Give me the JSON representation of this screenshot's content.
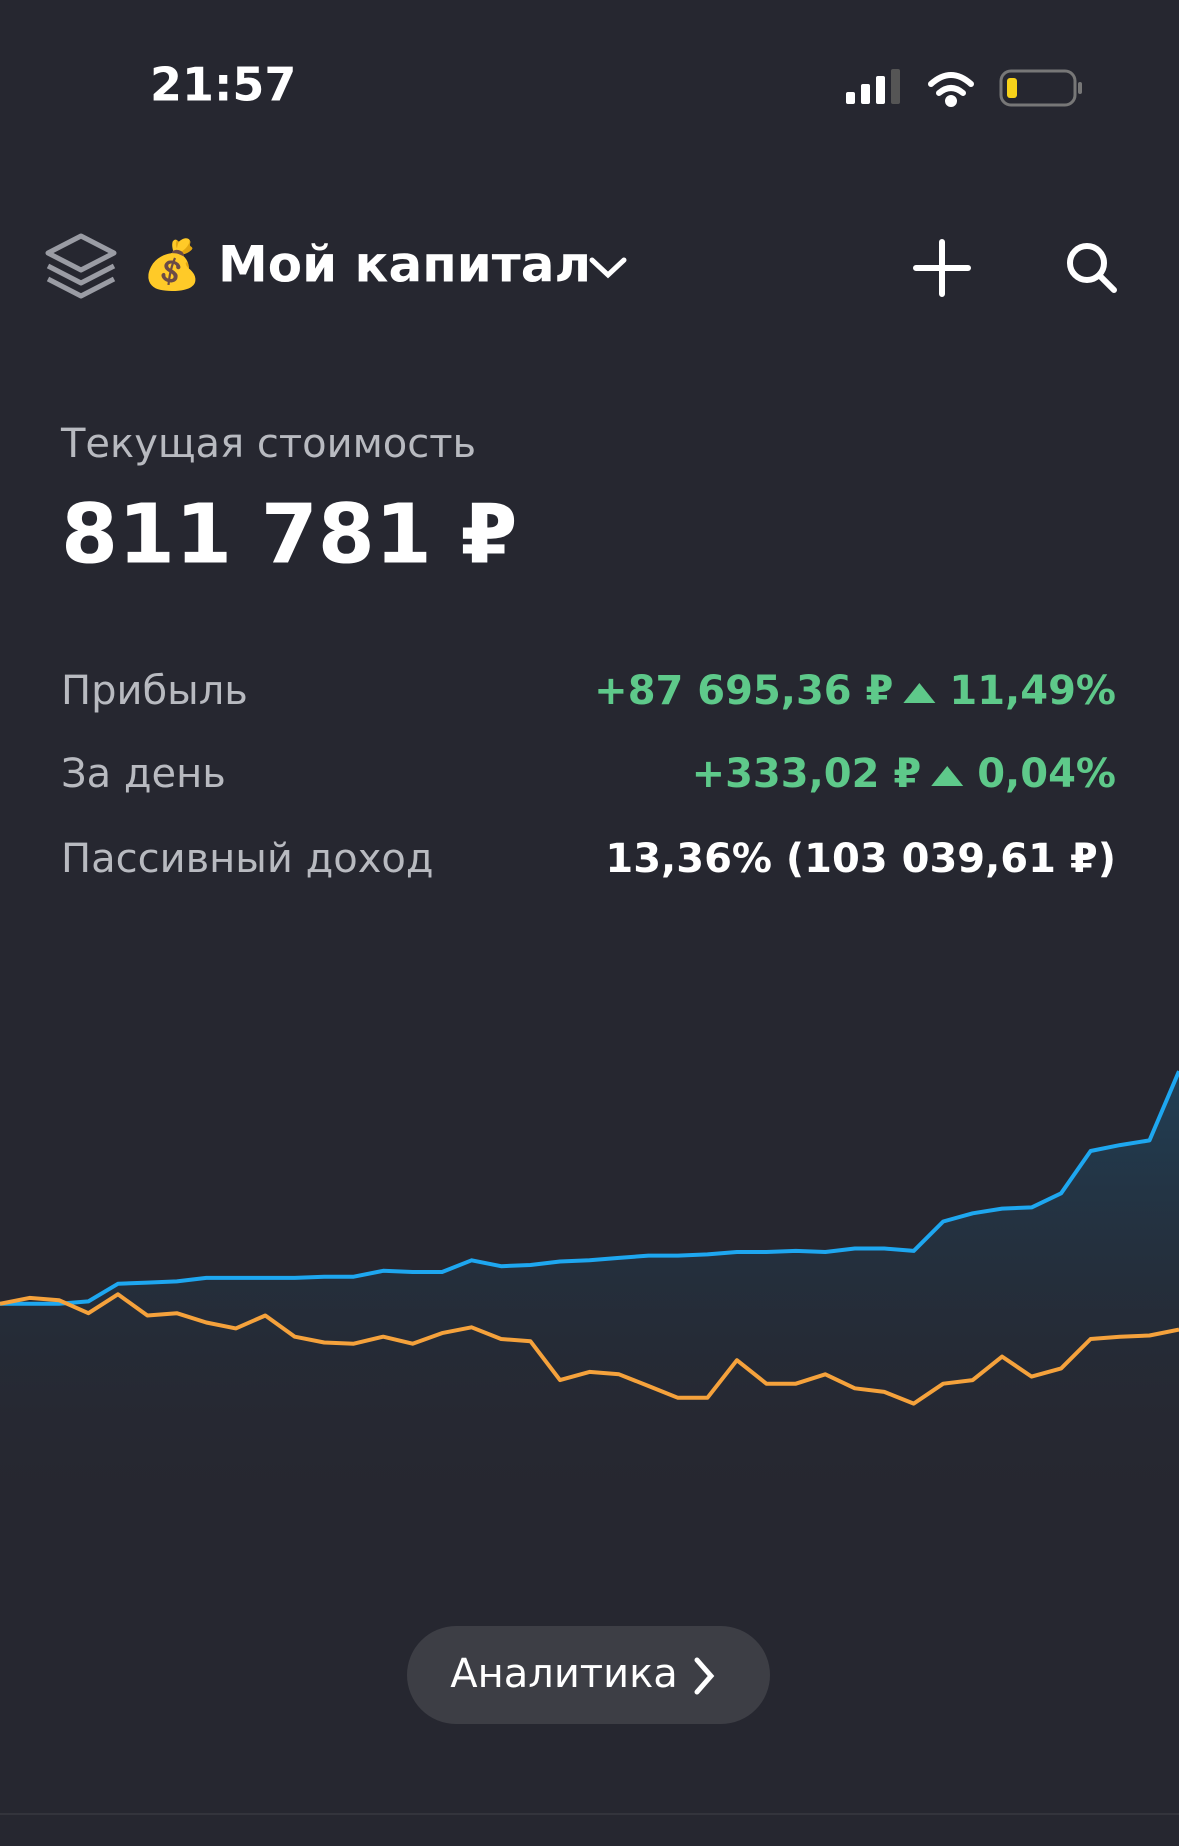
{
  "status_bar": {
    "time": "21:57"
  },
  "header": {
    "title": "Мой капитал"
  },
  "portfolio": {
    "label": "Текущая стоимость",
    "value": "811 781 ₽",
    "rows": [
      {
        "label": "Прибыль",
        "value": "+87 695,36 ₽",
        "change": "11,49%"
      },
      {
        "label": "За день",
        "value": "+333,02 ₽",
        "change": "0,04%"
      },
      {
        "label": "Пассивный доход",
        "value": "13,36% (103 039,61 ₽)"
      }
    ]
  },
  "chart_data": {
    "type": "line",
    "ylim": [
      0,
      400
    ],
    "series": [
      {
        "color": "#1ea7f0",
        "values": [
          190,
          190,
          190,
          192,
          207,
          208,
          209,
          212,
          212,
          212,
          212,
          213,
          213,
          218,
          217,
          217,
          227,
          222,
          223,
          226,
          227,
          229,
          231,
          231,
          232,
          234,
          234,
          235,
          234,
          237,
          237,
          235,
          260,
          267,
          271,
          272,
          284,
          320,
          325,
          329,
          388
        ]
      },
      {
        "color": "#f5a23c",
        "values": [
          190,
          195,
          193,
          182,
          198,
          180,
          182,
          174,
          169,
          180,
          162,
          157,
          156,
          162,
          156,
          165,
          170,
          160,
          158,
          125,
          132,
          130,
          120,
          110,
          110,
          142,
          122,
          122,
          130,
          118,
          115,
          105,
          122,
          125,
          145,
          128,
          135,
          160,
          162,
          163,
          168
        ]
      }
    ]
  },
  "button": {
    "label": "Аналитика"
  }
}
